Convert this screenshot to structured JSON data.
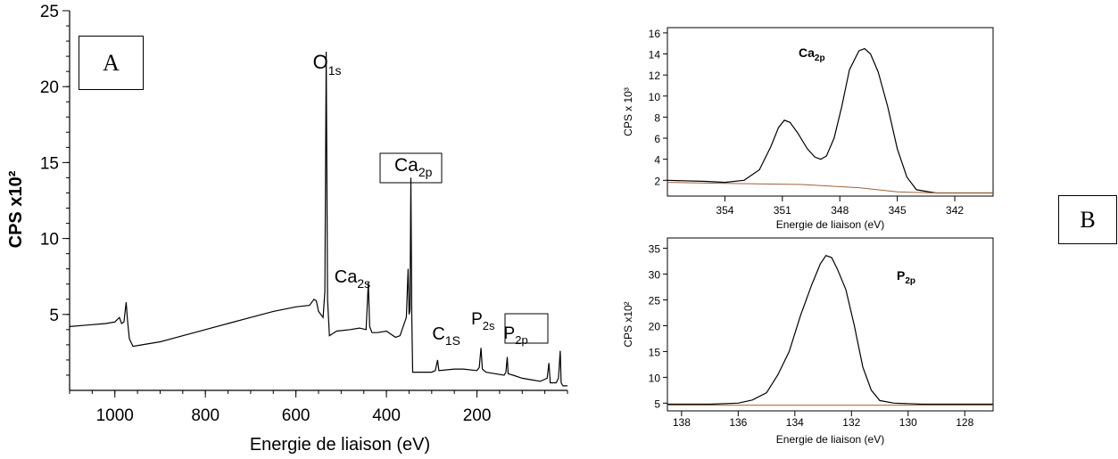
{
  "chart_data": [
    {
      "id": "survey",
      "type": "line",
      "panel": "A",
      "xlabel": "Energie de liaison (eV)",
      "ylabel": "CPS x10²",
      "xlim": [
        1100,
        0
      ],
      "ylim": [
        0,
        25
      ],
      "xticks": [
        1000,
        800,
        600,
        400,
        200
      ],
      "yticks": [
        5,
        10,
        15,
        20,
        25
      ],
      "points": [
        [
          1100,
          4.2
        ],
        [
          1060,
          4.3
        ],
        [
          1020,
          4.4
        ],
        [
          1000,
          4.5
        ],
        [
          990,
          4.8
        ],
        [
          985,
          4.4
        ],
        [
          980,
          4.5
        ],
        [
          975,
          5.8
        ],
        [
          972,
          4.6
        ],
        [
          968,
          3.4
        ],
        [
          960,
          2.9
        ],
        [
          940,
          3.0
        ],
        [
          900,
          3.2
        ],
        [
          850,
          3.6
        ],
        [
          800,
          4.0
        ],
        [
          750,
          4.4
        ],
        [
          700,
          4.8
        ],
        [
          650,
          5.2
        ],
        [
          600,
          5.5
        ],
        [
          570,
          5.6
        ],
        [
          560,
          6.0
        ],
        [
          555,
          5.9
        ],
        [
          550,
          5.2
        ],
        [
          540,
          4.8
        ],
        [
          536,
          6.5
        ],
        [
          533,
          22.3
        ],
        [
          530,
          6.0
        ],
        [
          526,
          3.6
        ],
        [
          510,
          3.9
        ],
        [
          480,
          4.0
        ],
        [
          460,
          4.1
        ],
        [
          445,
          4.0
        ],
        [
          440,
          7.1
        ],
        [
          437,
          4.2
        ],
        [
          432,
          3.8
        ],
        [
          420,
          3.8
        ],
        [
          400,
          3.9
        ],
        [
          390,
          3.7
        ],
        [
          380,
          3.5
        ],
        [
          370,
          3.6
        ],
        [
          356,
          4.8
        ],
        [
          352,
          8.0
        ],
        [
          350,
          5.0
        ],
        [
          348,
          5.3
        ],
        [
          346,
          14.0
        ],
        [
          344,
          5.0
        ],
        [
          342,
          1.2
        ],
        [
          320,
          1.2
        ],
        [
          300,
          1.2
        ],
        [
          292,
          1.3
        ],
        [
          287,
          2.0
        ],
        [
          284,
          1.3
        ],
        [
          250,
          1.4
        ],
        [
          230,
          1.4
        ],
        [
          200,
          1.3
        ],
        [
          195,
          1.5
        ],
        [
          191,
          2.8
        ],
        [
          188,
          1.4
        ],
        [
          180,
          1.2
        ],
        [
          160,
          1.1
        ],
        [
          140,
          1.0
        ],
        [
          136,
          1.2
        ],
        [
          133,
          2.2
        ],
        [
          131,
          1.1
        ],
        [
          120,
          1.0
        ],
        [
          100,
          0.8
        ],
        [
          80,
          0.7
        ],
        [
          60,
          0.6
        ],
        [
          45,
          0.8
        ],
        [
          41,
          1.8
        ],
        [
          38,
          0.5
        ],
        [
          25,
          0.5
        ],
        [
          20,
          0.8
        ],
        [
          16,
          2.6
        ],
        [
          14,
          0.5
        ],
        [
          10,
          0.3
        ],
        [
          0,
          0.3
        ]
      ],
      "peak_labels": [
        {
          "text": "O",
          "sub": "1s",
          "x": 533,
          "boxed": false
        },
        {
          "text": "Ca",
          "sub": "2p",
          "x": 347,
          "boxed": true
        },
        {
          "text": "Ca",
          "sub": "2s",
          "x": 440,
          "boxed": false
        },
        {
          "text": "C",
          "sub": "1S",
          "x": 285,
          "boxed": false
        },
        {
          "text": "P",
          "sub": "2s",
          "x": 191,
          "boxed": false
        },
        {
          "text": "P",
          "sub": "2p",
          "x": 133,
          "boxed": true
        }
      ]
    },
    {
      "id": "ca2p",
      "type": "line",
      "panel": "B",
      "title": "Ca",
      "title_sub": "2p",
      "xlabel": "Energie de liaison (eV)",
      "ylabel": "CPS x 10³",
      "xlim": [
        357,
        340
      ],
      "ylim": [
        0.5,
        16.5
      ],
      "xticks": [
        354,
        351,
        348,
        345,
        342
      ],
      "yticks": [
        2,
        4,
        6,
        8,
        10,
        12,
        14,
        16
      ],
      "series": [
        {
          "points": [
            [
              357,
              2.0
            ],
            [
              355,
              1.9
            ],
            [
              354,
              1.8
            ],
            [
              353,
              2.0
            ],
            [
              352.2,
              3.0
            ],
            [
              351.6,
              5.2
            ],
            [
              351.2,
              7.0
            ],
            [
              350.9,
              7.7
            ],
            [
              350.6,
              7.5
            ],
            [
              350.2,
              6.5
            ],
            [
              349.7,
              5.0
            ],
            [
              349.3,
              4.2
            ],
            [
              349.0,
              4.0
            ],
            [
              348.7,
              4.3
            ],
            [
              348.3,
              6.0
            ],
            [
              347.9,
              9.0
            ],
            [
              347.5,
              12.5
            ],
            [
              347.0,
              14.3
            ],
            [
              346.7,
              14.5
            ],
            [
              346.4,
              14.0
            ],
            [
              346.0,
              12.3
            ],
            [
              345.5,
              9.0
            ],
            [
              345.0,
              5.0
            ],
            [
              344.5,
              2.3
            ],
            [
              344.0,
              1.1
            ],
            [
              343.0,
              0.8
            ],
            [
              342.0,
              0.8
            ],
            [
              340,
              0.8
            ]
          ],
          "color": "#000000"
        },
        {
          "points": [
            [
              357,
              1.8
            ],
            [
              354,
              1.7
            ],
            [
              350,
              1.6
            ],
            [
              347,
              1.3
            ],
            [
              345,
              0.9
            ],
            [
              343,
              0.8
            ],
            [
              340,
              0.8
            ]
          ],
          "color": "#a0623a"
        }
      ]
    },
    {
      "id": "p2p",
      "type": "line",
      "panel": "B",
      "title": "P",
      "title_sub": "2p",
      "xlabel": "Energie de liaison (eV)",
      "ylabel": "CPS x10²",
      "xlim": [
        138.5,
        127
      ],
      "ylim": [
        3.5,
        37
      ],
      "xticks": [
        138,
        136,
        134,
        132,
        130,
        128
      ],
      "yticks": [
        5,
        10,
        15,
        20,
        25,
        30,
        35
      ],
      "series": [
        {
          "points": [
            [
              138.5,
              4.8
            ],
            [
              137,
              4.8
            ],
            [
              136,
              5.0
            ],
            [
              135.5,
              5.6
            ],
            [
              135.0,
              7.0
            ],
            [
              134.6,
              10.5
            ],
            [
              134.2,
              15.0
            ],
            [
              133.8,
              22.0
            ],
            [
              133.4,
              28.0
            ],
            [
              133.1,
              32.0
            ],
            [
              132.9,
              33.6
            ],
            [
              132.7,
              33.2
            ],
            [
              132.5,
              31.0
            ],
            [
              132.2,
              27.0
            ],
            [
              131.9,
              20.0
            ],
            [
              131.6,
              12.0
            ],
            [
              131.3,
              7.5
            ],
            [
              131.0,
              5.5
            ],
            [
              130.5,
              5.0
            ],
            [
              129.5,
              4.8
            ],
            [
              127,
              4.8
            ]
          ],
          "color": "#000000"
        },
        {
          "points": [
            [
              138.5,
              4.6
            ],
            [
              127,
              4.6
            ]
          ],
          "color": "#a0623a"
        }
      ]
    }
  ],
  "labels": {
    "panel_a": "A",
    "panel_b": "B"
  }
}
